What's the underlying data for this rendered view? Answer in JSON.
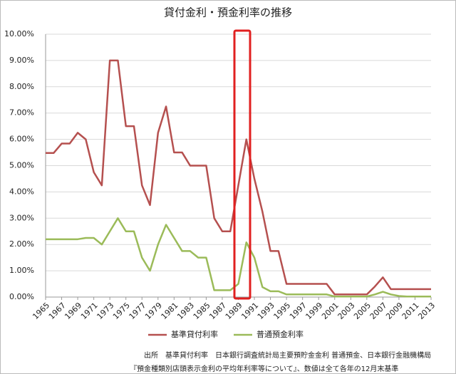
{
  "chart_data": {
    "type": "line",
    "title": "貸付金利・預金利率の推移",
    "x": [
      1965,
      1966,
      1967,
      1968,
      1969,
      1970,
      1971,
      1972,
      1973,
      1974,
      1975,
      1976,
      1977,
      1978,
      1979,
      1980,
      1981,
      1982,
      1983,
      1984,
      1985,
      1986,
      1987,
      1988,
      1989,
      1990,
      1991,
      1992,
      1993,
      1994,
      1995,
      1996,
      1997,
      1998,
      1999,
      2000,
      2001,
      2002,
      2003,
      2004,
      2005,
      2006,
      2007,
      2008,
      2009,
      2010,
      2011,
      2012,
      2013
    ],
    "series": [
      {
        "name": "基準貸付利率",
        "color": "#b5504f",
        "values": [
          5.48,
          5.48,
          5.84,
          5.84,
          6.25,
          6.0,
          4.75,
          4.25,
          9.0,
          9.0,
          6.5,
          6.5,
          4.25,
          3.5,
          6.25,
          7.25,
          5.5,
          5.5,
          5.0,
          5.0,
          5.0,
          3.0,
          2.5,
          2.5,
          4.25,
          6.0,
          4.5,
          3.25,
          1.75,
          1.75,
          0.5,
          0.5,
          0.5,
          0.5,
          0.5,
          0.5,
          0.1,
          0.1,
          0.1,
          0.1,
          0.1,
          0.4,
          0.75,
          0.3,
          0.3,
          0.3,
          0.3,
          0.3,
          0.3
        ]
      },
      {
        "name": "普通預金利率",
        "color": "#9bbb59",
        "values": [
          2.2,
          2.2,
          2.2,
          2.2,
          2.2,
          2.25,
          2.25,
          2.0,
          2.5,
          3.0,
          2.5,
          2.5,
          1.5,
          1.0,
          2.0,
          2.75,
          2.25,
          1.75,
          1.75,
          1.5,
          1.5,
          0.26,
          0.26,
          0.26,
          0.5,
          2.08,
          1.5,
          0.38,
          0.22,
          0.22,
          0.1,
          0.1,
          0.1,
          0.1,
          0.1,
          0.1,
          0.02,
          0.02,
          0.02,
          0.02,
          0.02,
          0.1,
          0.2,
          0.1,
          0.04,
          0.02,
          0.02,
          0.02,
          0.02
        ]
      }
    ],
    "xlim": [
      1965,
      2013
    ],
    "xticks": [
      1965,
      1967,
      1969,
      1971,
      1973,
      1975,
      1977,
      1979,
      1981,
      1983,
      1985,
      1987,
      1989,
      1991,
      1993,
      1995,
      1997,
      1999,
      2001,
      2003,
      2005,
      2007,
      2009,
      2011,
      2013
    ],
    "ylim": [
      0,
      10
    ],
    "yticks": [
      {
        "value": 0,
        "label": "0.00%"
      },
      {
        "value": 1,
        "label": "1.00%"
      },
      {
        "value": 2,
        "label": "2.00%"
      },
      {
        "value": 3,
        "label": "3.00%"
      },
      {
        "value": 4,
        "label": "4.00%"
      },
      {
        "value": 5,
        "label": "5.00%"
      },
      {
        "value": 6,
        "label": "6.00%"
      },
      {
        "value": 7,
        "label": "7.00%"
      },
      {
        "value": 8,
        "label": "8.00%"
      },
      {
        "value": 9,
        "label": "9.00%"
      },
      {
        "value": 10,
        "label": "10.00%"
      }
    ],
    "grid": true,
    "legend": "bottom",
    "notes": [
      "出所　基準貸付利率　日本銀行調査統計局主要預貯金金利 普通預金、日本銀行金融機構局",
      "『預金種類別店頭表示金利の平均年利率等について』、数値は全て各年の12月末基準"
    ]
  }
}
